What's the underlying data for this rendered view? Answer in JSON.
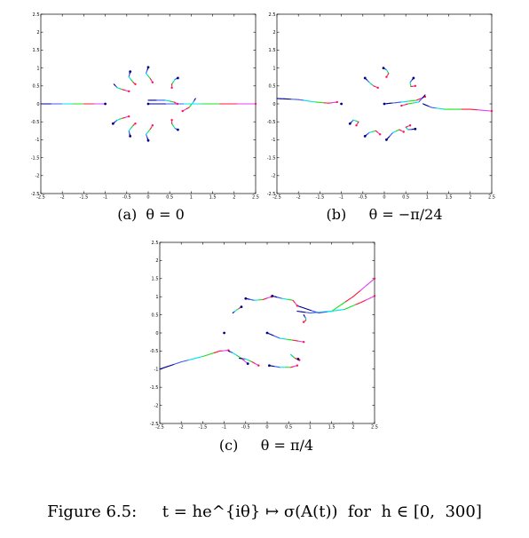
{
  "figure": {
    "caption": "Figure 6.5:     t = he^{iθ} ↦ σ(A(t))  for  h ∈ [0,  300]"
  },
  "colors": {
    "start": "#00008b",
    "early": "#3b5bff",
    "mid": "#00e5e5",
    "mid2": "#20e020",
    "late": "#ff1744",
    "late2": "#e040fb"
  },
  "chart_data": [
    {
      "type": "scatter",
      "caption": "(a)  θ = 0",
      "xlim": [
        -2.5,
        2.5
      ],
      "ylim": [
        -2.5,
        2.5
      ],
      "xticks": [
        "-2.5",
        "-2",
        "-1.5",
        "-1",
        "-0.5",
        "0",
        "0.5",
        "1",
        "1.5",
        "2",
        "2.5"
      ],
      "yticks": [
        "-2.5",
        "-2",
        "-1.5",
        "-1",
        "-0.5",
        "0",
        "0.5",
        "1",
        "1.5",
        "2",
        "2.5"
      ],
      "curves": [
        {
          "x": [
            -2.5,
            -2.0,
            -1.5,
            -1.0
          ],
          "y": [
            0,
            0,
            0,
            0
          ]
        },
        {
          "x": [
            0.0,
            0.5,
            1.0,
            1.5,
            2.0,
            2.5
          ],
          "y": [
            0,
            0,
            0,
            0,
            0,
            0
          ]
        },
        {
          "x": [
            0.0,
            0.4,
            0.6,
            0.68
          ],
          "y": [
            0.1,
            0.1,
            0.05,
            0.0
          ]
        },
        {
          "x": [
            0.69,
            0.62,
            0.55,
            0.55
          ],
          "y": [
            0.72,
            0.68,
            0.55,
            0.45
          ]
        },
        {
          "x": [
            0.0,
            -0.05,
            0.05,
            0.1
          ],
          "y": [
            1.02,
            0.85,
            0.7,
            0.6
          ]
        },
        {
          "x": [
            -0.42,
            -0.45,
            -0.35,
            -0.3
          ],
          "y": [
            0.9,
            0.75,
            0.6,
            0.55
          ]
        },
        {
          "x": [
            -0.8,
            -0.72,
            -0.6,
            -0.45
          ],
          "y": [
            0.55,
            0.45,
            0.4,
            0.35
          ]
        },
        {
          "x": [
            -0.82,
            -0.72,
            -0.6,
            -0.45
          ],
          "y": [
            -0.55,
            -0.45,
            -0.4,
            -0.35
          ]
        },
        {
          "x": [
            -0.42,
            -0.45,
            -0.35,
            -0.3
          ],
          "y": [
            -0.9,
            -0.75,
            -0.6,
            -0.55
          ]
        },
        {
          "x": [
            0.0,
            -0.05,
            0.05,
            0.1
          ],
          "y": [
            -1.02,
            -0.85,
            -0.7,
            -0.6
          ]
        },
        {
          "x": [
            0.69,
            0.62,
            0.55,
            0.55
          ],
          "y": [
            -0.72,
            -0.68,
            -0.55,
            -0.45
          ]
        },
        {
          "x": [
            1.1,
            1.05,
            0.95,
            0.8
          ],
          "y": [
            0.15,
            0.05,
            -0.1,
            -0.2
          ]
        }
      ],
      "start_points": {
        "x": [
          -1.0,
          0.0,
          0.69,
          0.0,
          -0.42,
          -0.82,
          -0.42,
          0.0,
          0.69
        ],
        "y": [
          0.0,
          0.0,
          0.72,
          1.02,
          0.9,
          -0.55,
          -0.9,
          -1.02,
          -0.72
        ]
      }
    },
    {
      "type": "scatter",
      "caption": "(b)     θ = −π/24",
      "xlim": [
        -2.5,
        2.5
      ],
      "ylim": [
        -2.5,
        2.5
      ],
      "xticks": [
        "-2.5",
        "-2",
        "-1.5",
        "-1",
        "-0.5",
        "0",
        "0.5",
        "1",
        "1.5",
        "2",
        "2.5"
      ],
      "yticks": [
        "-2.5",
        "-2",
        "-1.5",
        "-1",
        "-0.5",
        "0",
        "0.5",
        "1",
        "1.5",
        "2",
        "2.5"
      ],
      "curves": [
        {
          "x": [
            -2.5,
            -2.0,
            -1.6,
            -1.3,
            -1.1
          ],
          "y": [
            0.15,
            0.12,
            0.05,
            0.02,
            0.05
          ]
        },
        {
          "x": [
            0.9,
            1.1,
            1.4,
            2.0,
            2.5
          ],
          "y": [
            0.0,
            -0.1,
            -0.15,
            -0.15,
            -0.2
          ]
        },
        {
          "x": [
            0.0,
            0.4,
            0.75,
            0.95
          ],
          "y": [
            0.0,
            0.05,
            0.1,
            0.2
          ]
        },
        {
          "x": [
            0.68,
            0.6,
            0.62,
            0.72
          ],
          "y": [
            0.72,
            0.6,
            0.48,
            0.5
          ]
        },
        {
          "x": [
            -0.02,
            0.05,
            0.1,
            0.05
          ],
          "y": [
            1.0,
            0.95,
            0.85,
            0.75
          ]
        },
        {
          "x": [
            -0.45,
            -0.35,
            -0.25,
            -0.15
          ],
          "y": [
            0.72,
            0.6,
            0.5,
            0.45
          ]
        },
        {
          "x": [
            -0.8,
            -0.72,
            -0.6,
            -0.65
          ],
          "y": [
            -0.55,
            -0.45,
            -0.5,
            -0.6
          ]
        },
        {
          "x": [
            -0.45,
            -0.35,
            -0.2,
            -0.1
          ],
          "y": [
            -0.9,
            -0.8,
            -0.75,
            -0.85
          ]
        },
        {
          "x": [
            0.05,
            0.2,
            0.35,
            0.45
          ],
          "y": [
            -1.0,
            -0.8,
            -0.72,
            -0.78
          ]
        },
        {
          "x": [
            0.72,
            0.55,
            0.5,
            0.6
          ],
          "y": [
            -0.7,
            -0.72,
            -0.65,
            -0.6
          ]
        },
        {
          "x": [
            0.95,
            0.8,
            0.55,
            0.4
          ],
          "y": [
            0.25,
            0.05,
            0.0,
            -0.05
          ]
        }
      ],
      "start_points": {
        "x": [
          -1.0,
          0.0,
          0.68,
          -0.02,
          -0.45,
          -0.8,
          -0.45,
          0.05,
          0.72
        ],
        "y": [
          0.0,
          0.0,
          0.72,
          1.0,
          0.72,
          -0.55,
          -0.9,
          -1.0,
          -0.7
        ]
      }
    },
    {
      "type": "scatter",
      "caption": "(c)     θ = π/4",
      "xlim": [
        -2.5,
        2.5
      ],
      "ylim": [
        -2.5,
        2.5
      ],
      "xticks": [
        "-2.5",
        "-2",
        "-1.5",
        "-1",
        "-0.5",
        "0",
        "0.5",
        "1",
        "1.5",
        "2",
        "2.5"
      ],
      "yticks": [
        "-2.5",
        "-2",
        "-1.5",
        "-1",
        "-0.5",
        "0",
        "0.5",
        "1",
        "1.5",
        "2",
        "2.5"
      ],
      "curves": [
        {
          "x": [
            -2.5,
            -2.0,
            -1.5,
            -1.1,
            -0.9
          ],
          "y": [
            -1.0,
            -0.8,
            -0.65,
            -0.5,
            -0.48
          ]
        },
        {
          "x": [
            0.7,
            1.0,
            1.5,
            2.0,
            2.5
          ],
          "y": [
            0.6,
            0.55,
            0.6,
            1.0,
            1.5
          ]
        },
        {
          "x": [
            0.7,
            1.2,
            1.8,
            2.2,
            2.5
          ],
          "y": [
            0.75,
            0.55,
            0.65,
            0.85,
            1.02
          ]
        },
        {
          "x": [
            0.0,
            0.3,
            0.6,
            0.85
          ],
          "y": [
            0.0,
            -0.15,
            -0.2,
            -0.25
          ]
        },
        {
          "x": [
            0.05,
            0.3,
            0.55,
            0.7
          ],
          "y": [
            -0.9,
            -0.95,
            -0.95,
            -0.9
          ]
        },
        {
          "x": [
            0.12,
            0.35,
            0.6,
            0.7
          ],
          "y": [
            1.02,
            0.95,
            0.9,
            0.75
          ]
        },
        {
          "x": [
            -0.5,
            -0.3,
            -0.1,
            0.1
          ],
          "y": [
            0.95,
            0.9,
            0.92,
            1.0
          ]
        },
        {
          "x": [
            -0.8,
            -0.75,
            -0.65,
            -0.6
          ],
          "y": [
            0.55,
            0.6,
            0.68,
            0.72
          ]
        },
        {
          "x": [
            -0.9,
            -0.8,
            -0.6,
            -0.45
          ],
          "y": [
            -0.5,
            -0.55,
            -0.7,
            -0.85
          ]
        },
        {
          "x": [
            -0.65,
            -0.5,
            -0.35,
            -0.2
          ],
          "y": [
            -0.7,
            -0.72,
            -0.8,
            -0.9
          ]
        },
        {
          "x": [
            0.6,
            0.55,
            0.65,
            0.75
          ],
          "y": [
            -0.65,
            -0.6,
            -0.7,
            -0.75
          ]
        },
        {
          "x": [
            0.85,
            0.9,
            0.9,
            0.85
          ],
          "y": [
            0.5,
            0.4,
            0.35,
            0.3
          ]
        }
      ],
      "start_points": {
        "x": [
          -1.0,
          0.0,
          -0.6,
          0.12,
          -0.5,
          -0.45,
          0.05,
          0.72
        ],
        "y": [
          0.0,
          0.0,
          0.72,
          1.02,
          0.95,
          -0.85,
          -0.9,
          -0.72
        ]
      }
    }
  ]
}
